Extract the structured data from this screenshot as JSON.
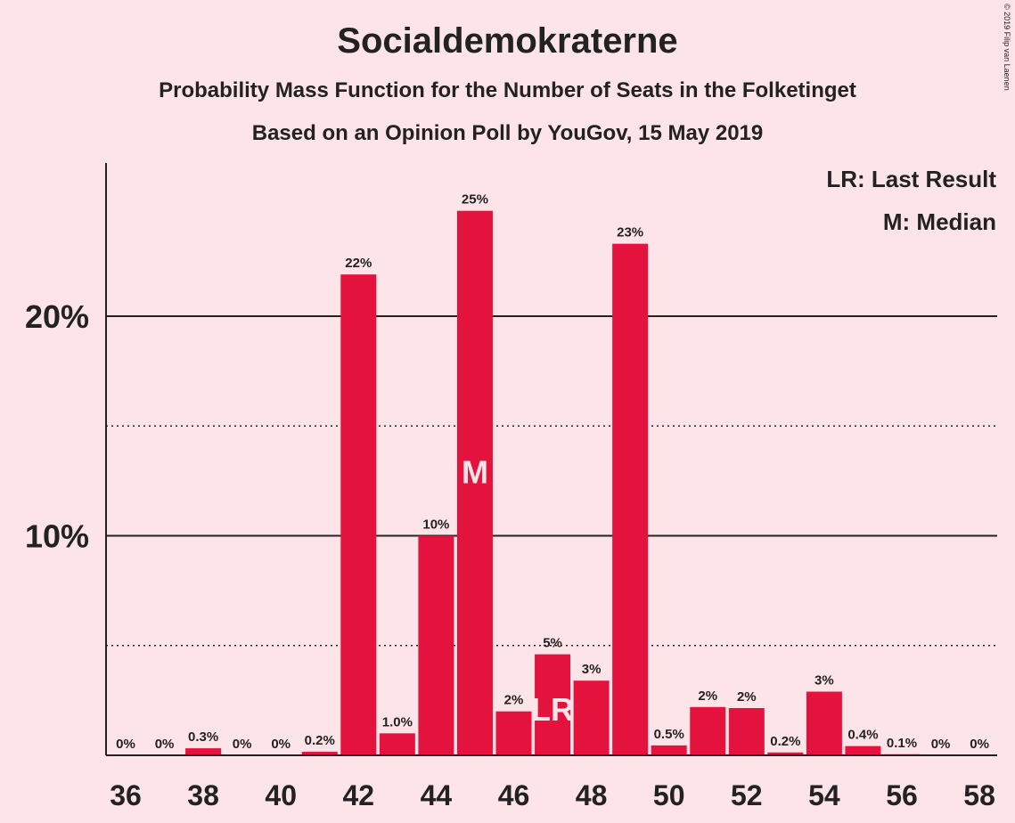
{
  "title": "Socialdemokraterne",
  "subtitle": "Probability Mass Function for the Number of Seats in the Folketinget",
  "subtitle2": "Based on an Opinion Poll by YouGov, 15 May 2019",
  "copyright": "© 2019 Filip van Laenen",
  "legend": {
    "lr": "LR: Last Result",
    "median": "M: Median"
  },
  "colors": {
    "bar": "#e3133d",
    "background": "#fde4e8",
    "text": "#222222"
  },
  "chart_data": {
    "type": "bar",
    "xlabel": "",
    "ylabel": "",
    "categories": [
      36,
      37,
      38,
      39,
      40,
      41,
      42,
      43,
      44,
      45,
      46,
      47,
      48,
      49,
      50,
      51,
      52,
      53,
      54,
      55,
      56,
      57,
      58
    ],
    "values": [
      0,
      0,
      0.3,
      0,
      0,
      0.2,
      22,
      1.0,
      10,
      25,
      2,
      5,
      3,
      23,
      0.5,
      2,
      2,
      0.2,
      3,
      0.4,
      0.1,
      0,
      0
    ],
    "heights": [
      0,
      0,
      0.32,
      0,
      0,
      0.16,
      21.9,
      1.0,
      10.0,
      24.8,
      2.0,
      4.6,
      3.4,
      23.3,
      0.45,
      2.2,
      2.15,
      0.13,
      2.9,
      0.42,
      0.05,
      0,
      0
    ],
    "value_labels": [
      "0%",
      "0%",
      "0.3%",
      "0%",
      "0%",
      "0.2%",
      "22%",
      "1.0%",
      "10%",
      "25%",
      "2%",
      "5%",
      "3%",
      "23%",
      "0.5%",
      "2%",
      "2%",
      "0.2%",
      "3%",
      "0.4%",
      "0.1%",
      "0%",
      "0%"
    ],
    "x_tick_labels": [
      "36",
      "38",
      "40",
      "42",
      "44",
      "46",
      "48",
      "50",
      "52",
      "54",
      "56",
      "58"
    ],
    "y_tick_labels": [
      "10%",
      "20%"
    ],
    "ylim": [
      0,
      27
    ],
    "solid_gridlines": [
      10,
      20
    ],
    "dotted_gridlines": [
      5,
      15
    ],
    "last_result_seat": 47,
    "last_result_label": "LR",
    "median_seat": 45,
    "median_label": "M"
  }
}
